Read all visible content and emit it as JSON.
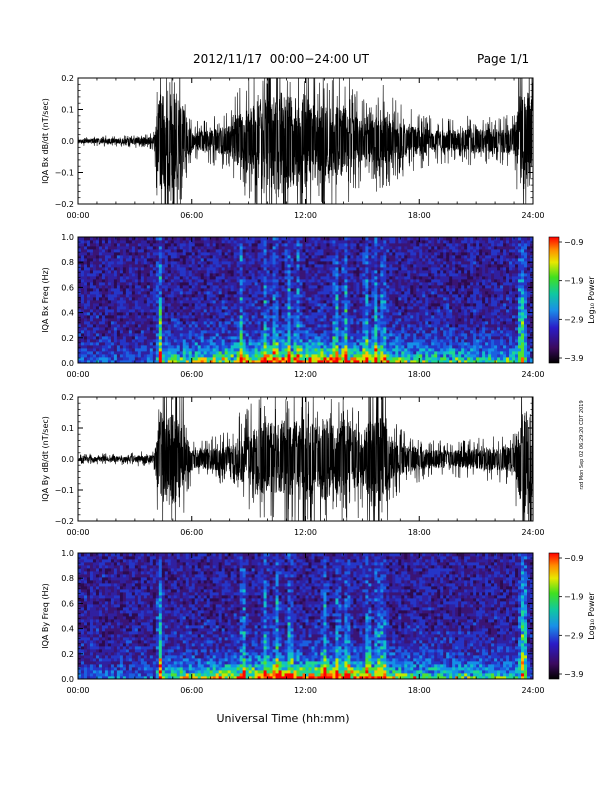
{
  "header": {
    "title": "2012/11/17  00:00−24:00 UT",
    "page": "Page 1/1"
  },
  "footer": {
    "xlabel": "Universal Time (hh:mm)",
    "side_note": "rzd Mon Sep 02 06:29:20 CDT 2019"
  },
  "chart_data": [
    {
      "type": "line",
      "ylabel": "IQA Bx dB/dt (nT/sec)",
      "xlabel": "Universal Time (hh:mm)",
      "xlim": [
        0,
        24
      ],
      "ylim": [
        -0.2,
        0.2
      ],
      "x_tick_labels": [
        "00:00",
        "06:00",
        "12:00",
        "18:00",
        "24:00"
      ],
      "y_tick_labels": [
        "0.2",
        "0.1",
        "0.0",
        "−0.1",
        "−0.2"
      ],
      "series": [
        {
          "x": [
            0,
            1,
            2,
            3,
            4,
            4.3,
            4.7,
            5.3,
            6,
            7,
            8,
            8.5,
            9,
            9.5,
            10,
            10.5,
            11,
            11.5,
            12,
            12.5,
            13,
            13.5,
            14,
            14.5,
            15,
            15.5,
            16,
            16.5,
            17,
            18,
            19,
            20,
            21,
            22,
            23,
            23.4,
            23.8,
            24
          ],
          "amplitude": [
            0.01,
            0.012,
            0.012,
            0.015,
            0.02,
            0.22,
            0.22,
            0.22,
            0.04,
            0.05,
            0.07,
            0.12,
            0.15,
            0.17,
            0.2,
            0.22,
            0.22,
            0.2,
            0.21,
            0.18,
            0.16,
            0.15,
            0.17,
            0.12,
            0.09,
            0.1,
            0.13,
            0.1,
            0.08,
            0.06,
            0.05,
            0.05,
            0.06,
            0.05,
            0.06,
            0.22,
            0.22,
            0.22
          ]
        }
      ],
      "grid": false
    },
    {
      "type": "heatmap",
      "ylabel": "IQA Bx Freq (Hz)",
      "xlim": [
        0,
        24
      ],
      "ylim": [
        0.0,
        1.0
      ],
      "x_tick_labels": [
        "00:00",
        "06:00",
        "12:00",
        "18:00",
        "24:00"
      ],
      "y_tick_labels": [
        "1.0",
        "0.8",
        "0.6",
        "0.4",
        "0.2",
        "0.0"
      ],
      "colorbar": {
        "label": "Log₁₀ Power",
        "range": [
          -3.9,
          -0.9
        ],
        "tick_labels": [
          "−0.9",
          "−1.9",
          "−2.9",
          "−3.9"
        ]
      },
      "bright_times": [
        4.3,
        8.6,
        9.9,
        10.4,
        11.1,
        11.6,
        13.6,
        14.1,
        15.2,
        15.7,
        16.1,
        23.4
      ]
    },
    {
      "type": "line",
      "ylabel": "IQA By dB/dt (nT/sec)",
      "xlim": [
        0,
        24
      ],
      "ylim": [
        -0.2,
        0.2
      ],
      "x_tick_labels": [
        "00:00",
        "06:00",
        "12:00",
        "18:00",
        "24:00"
      ],
      "y_tick_labels": [
        "0.2",
        "0.1",
        "0.0",
        "−0.1",
        "−0.2"
      ],
      "series": [
        {
          "x": [
            0,
            1,
            2,
            3,
            4,
            4.3,
            4.7,
            5.3,
            6,
            7,
            8,
            8.5,
            9,
            9.5,
            10,
            10.5,
            11,
            11.5,
            12,
            12.5,
            13,
            13.5,
            14,
            14.5,
            15,
            15.5,
            16,
            16.5,
            17,
            18,
            19,
            20,
            21,
            22,
            23,
            23.4,
            23.8,
            24
          ],
          "amplitude": [
            0.01,
            0.012,
            0.012,
            0.015,
            0.02,
            0.22,
            0.22,
            0.2,
            0.04,
            0.05,
            0.06,
            0.1,
            0.12,
            0.15,
            0.18,
            0.16,
            0.17,
            0.18,
            0.2,
            0.18,
            0.2,
            0.15,
            0.19,
            0.14,
            0.12,
            0.22,
            0.2,
            0.1,
            0.07,
            0.05,
            0.04,
            0.04,
            0.05,
            0.05,
            0.06,
            0.22,
            0.22,
            0.22
          ]
        }
      ],
      "grid": false
    },
    {
      "type": "heatmap",
      "ylabel": "IQA By Freq (Hz)",
      "xlim": [
        0,
        24
      ],
      "ylim": [
        0.0,
        1.0
      ],
      "x_tick_labels": [
        "00:00",
        "06:00",
        "12:00",
        "18:00",
        "24:00"
      ],
      "y_tick_labels": [
        "1.0",
        "0.8",
        "0.6",
        "0.4",
        "0.2",
        "0.0"
      ],
      "colorbar": {
        "label": "Log₁₀ Power",
        "range": [
          -3.9,
          -0.9
        ],
        "tick_labels": [
          "−0.9",
          "−1.9",
          "−2.9",
          "−3.9"
        ]
      },
      "bright_times": [
        4.3,
        8.7,
        9.9,
        10.5,
        11.2,
        13.0,
        13.7,
        14.2,
        15.3,
        15.8,
        16.1,
        23.5
      ]
    }
  ]
}
